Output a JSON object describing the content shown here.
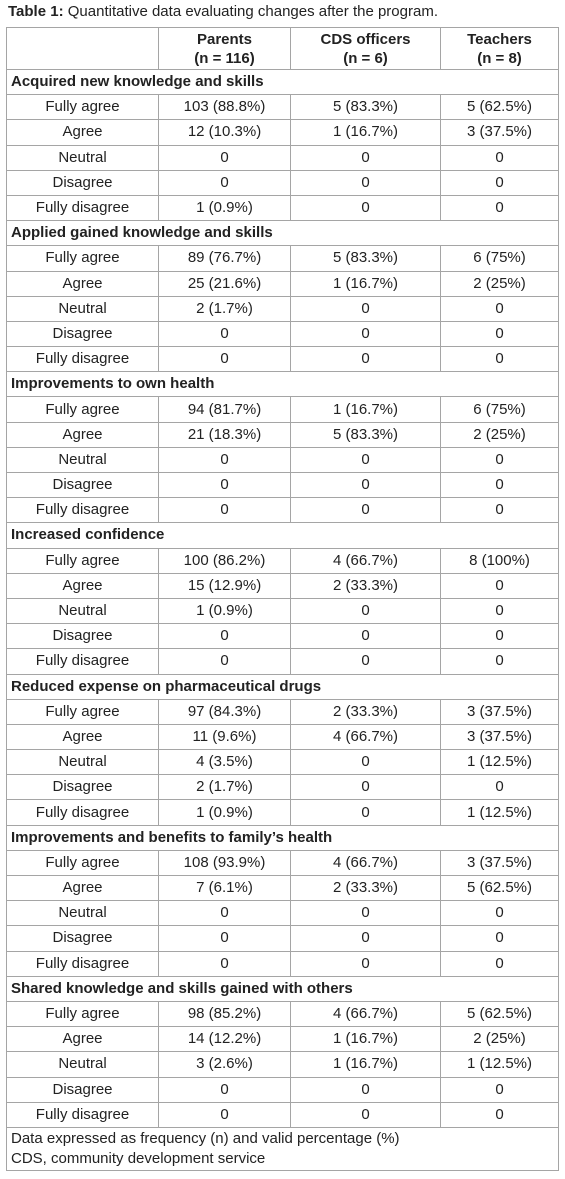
{
  "caption": {
    "label": "Table 1:",
    "text": "Quantitative data evaluating changes after the program."
  },
  "table": {
    "columns": [
      {
        "name": "Parents",
        "n": "(n = 116)"
      },
      {
        "name": "CDS officers",
        "n": "(n = 6)"
      },
      {
        "name": "Teachers",
        "n": "(n = 8)"
      }
    ],
    "sections": [
      {
        "title": "Acquired new knowledge and skills",
        "rows": [
          [
            "Fully agree",
            "103 (88.8%)",
            "5 (83.3%)",
            "5 (62.5%)"
          ],
          [
            "Agree",
            "12 (10.3%)",
            "1 (16.7%)",
            "3 (37.5%)"
          ],
          [
            "Neutral",
            "0",
            "0",
            "0"
          ],
          [
            "Disagree",
            "0",
            "0",
            "0"
          ],
          [
            "Fully disagree",
            "1 (0.9%)",
            "0",
            "0"
          ]
        ]
      },
      {
        "title": "Applied gained knowledge and skills",
        "rows": [
          [
            "Fully agree",
            "89 (76.7%)",
            "5 (83.3%)",
            "6 (75%)"
          ],
          [
            "Agree",
            "25 (21.6%)",
            "1 (16.7%)",
            "2 (25%)"
          ],
          [
            "Neutral",
            "2 (1.7%)",
            "0",
            "0"
          ],
          [
            "Disagree",
            "0",
            "0",
            "0"
          ],
          [
            "Fully disagree",
            "0",
            "0",
            "0"
          ]
        ]
      },
      {
        "title": "Improvements to own health",
        "rows": [
          [
            "Fully agree",
            "94 (81.7%)",
            "1 (16.7%)",
            "6 (75%)"
          ],
          [
            "Agree",
            "21 (18.3%)",
            "5 (83.3%)",
            "2 (25%)"
          ],
          [
            "Neutral",
            "0",
            "0",
            "0"
          ],
          [
            "Disagree",
            "0",
            "0",
            "0"
          ],
          [
            "Fully disagree",
            "0",
            "0",
            "0"
          ]
        ]
      },
      {
        "title": "Increased confidence",
        "rows": [
          [
            "Fully agree",
            "100 (86.2%)",
            "4 (66.7%)",
            "8 (100%)"
          ],
          [
            "Agree",
            "15 (12.9%)",
            "2 (33.3%)",
            "0"
          ],
          [
            "Neutral",
            "1 (0.9%)",
            "0",
            "0"
          ],
          [
            "Disagree",
            "0",
            "0",
            "0"
          ],
          [
            "Fully disagree",
            "0",
            "0",
            "0"
          ]
        ]
      },
      {
        "title": "Reduced expense on pharmaceutical drugs",
        "rows": [
          [
            "Fully agree",
            "97 (84.3%)",
            "2 (33.3%)",
            "3 (37.5%)"
          ],
          [
            "Agree",
            "11 (9.6%)",
            "4 (66.7%)",
            "3 (37.5%)"
          ],
          [
            "Neutral",
            "4 (3.5%)",
            "0",
            "1 (12.5%)"
          ],
          [
            "Disagree",
            "2 (1.7%)",
            "0",
            "0"
          ],
          [
            "Fully disagree",
            "1 (0.9%)",
            "0",
            "1 (12.5%)"
          ]
        ]
      },
      {
        "title": "Improvements and benefits to family’s health",
        "rows": [
          [
            "Fully agree",
            "108 (93.9%)",
            "4 (66.7%)",
            "3 (37.5%)"
          ],
          [
            "Agree",
            "7 (6.1%)",
            "2 (33.3%)",
            "5 (62.5%)"
          ],
          [
            "Neutral",
            "0",
            "0",
            "0"
          ],
          [
            "Disagree",
            "0",
            "0",
            "0"
          ],
          [
            "Fully disagree",
            "0",
            "0",
            "0"
          ]
        ]
      },
      {
        "title": "Shared knowledge and skills gained with others",
        "rows": [
          [
            "Fully agree",
            "98 (85.2%)",
            "4 (66.7%)",
            "5 (62.5%)"
          ],
          [
            "Agree",
            "14 (12.2%)",
            "1 (16.7%)",
            "2 (25%)"
          ],
          [
            "Neutral",
            "3 (2.6%)",
            "1 (16.7%)",
            "1 (12.5%)"
          ],
          [
            "Disagree",
            "0",
            "0",
            "0"
          ],
          [
            "Fully disagree",
            "0",
            "0",
            "0"
          ]
        ]
      }
    ],
    "footnotes": [
      "Data expressed as frequency (n) and valid percentage (%)",
      "CDS, community development service"
    ]
  }
}
